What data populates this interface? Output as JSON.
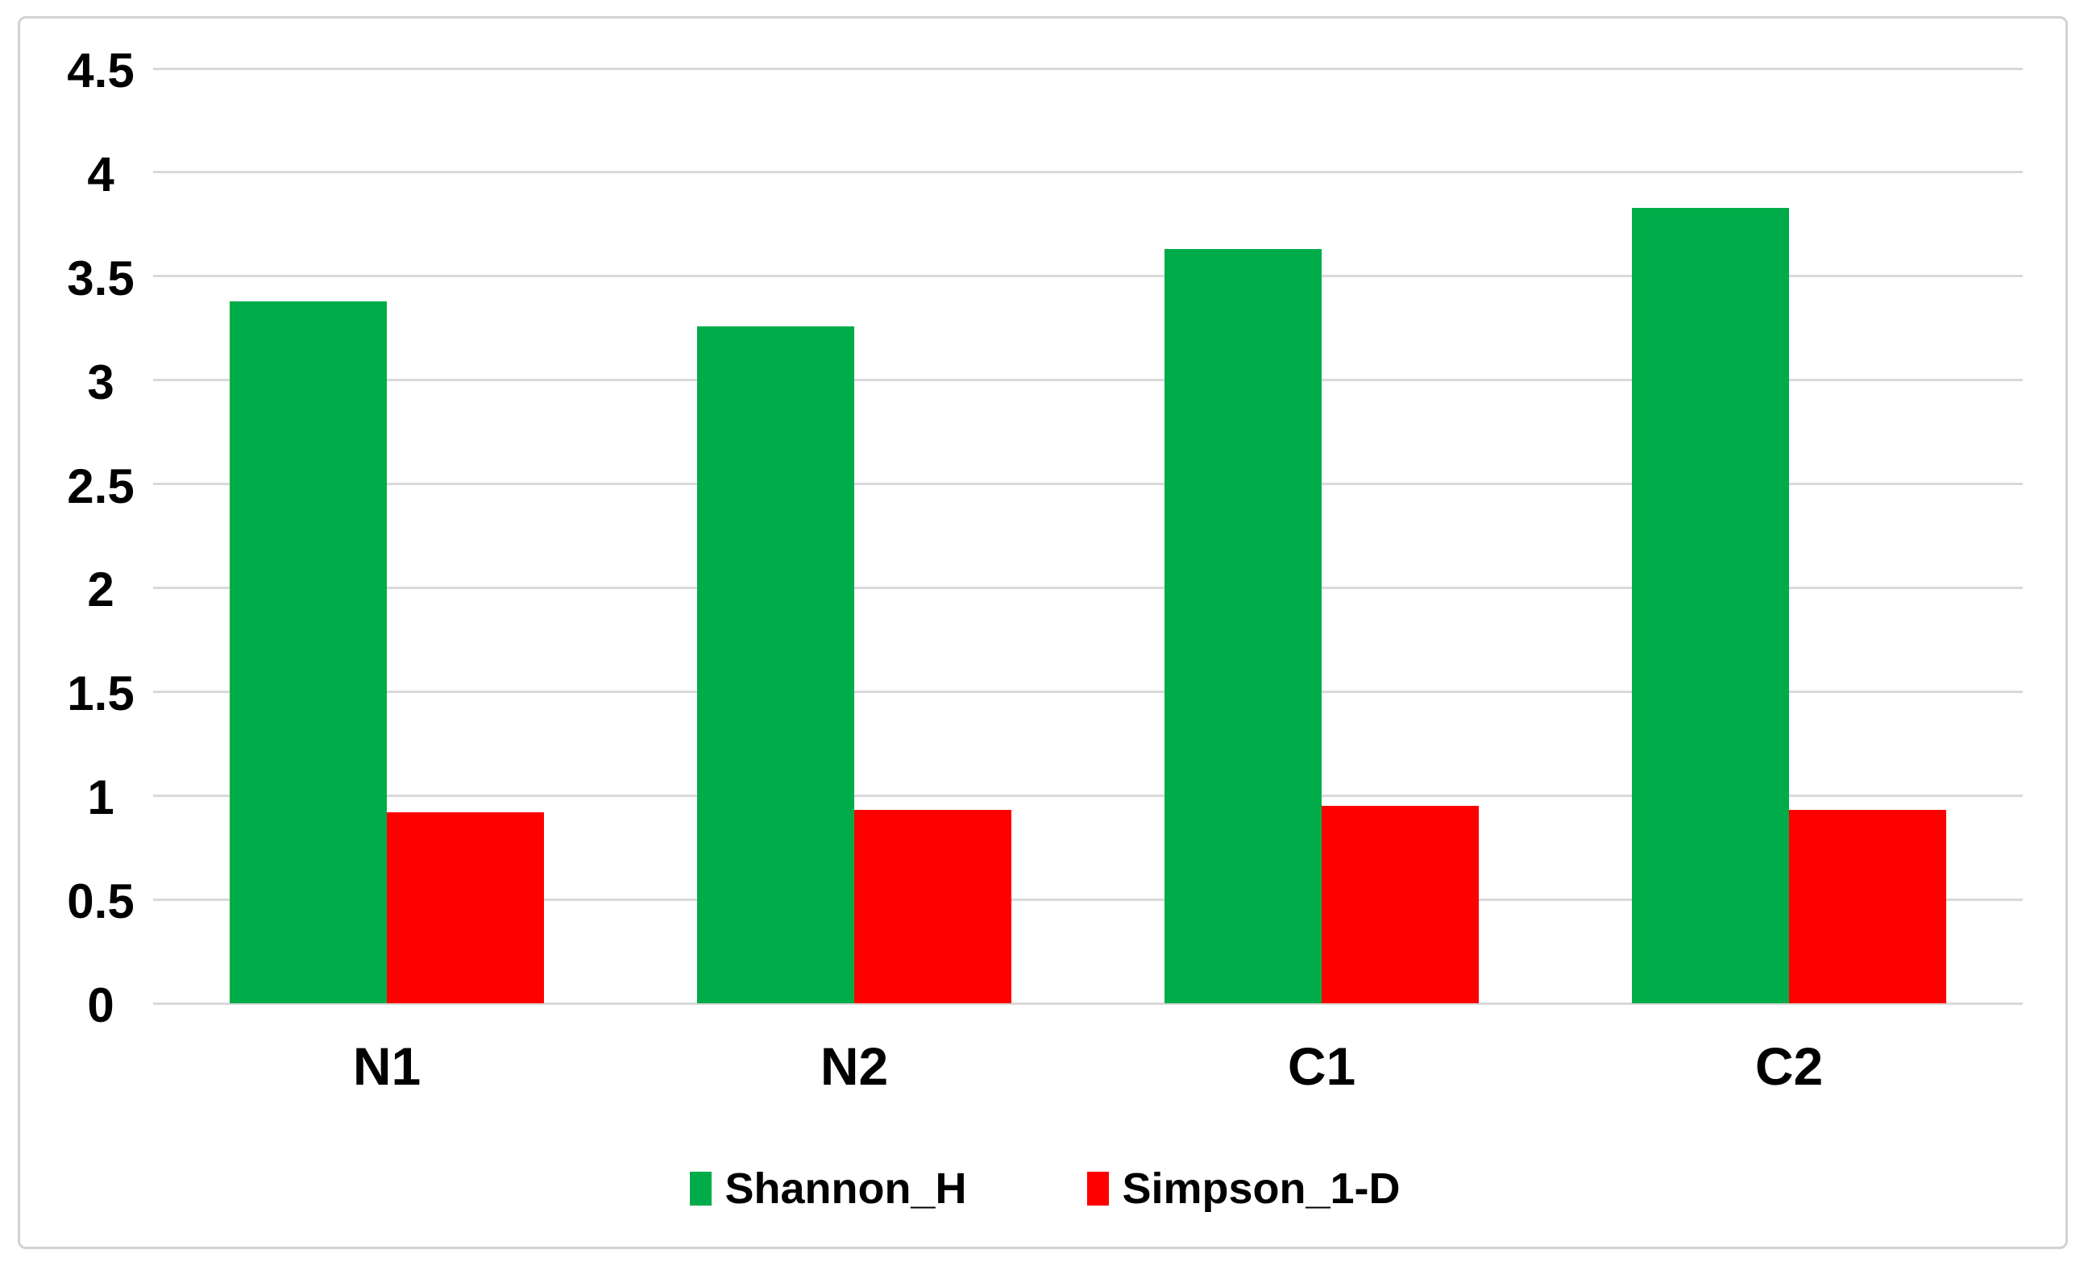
{
  "figure": {
    "background_color": "#ffffff",
    "frame_border_color": "#d2d2d2"
  },
  "chart_data": {
    "type": "bar",
    "categories": [
      "N1",
      "N2",
      "C1",
      "C2"
    ],
    "series": [
      {
        "name": "Shannon_H",
        "color": "#00ac4a",
        "values": [
          3.38,
          3.26,
          3.63,
          3.83
        ]
      },
      {
        "name": "Simpson_1-D",
        "color": "#ff0000",
        "values": [
          0.92,
          0.93,
          0.95,
          0.93
        ]
      }
    ],
    "title": "",
    "xlabel": "",
    "ylabel": "",
    "ylim": [
      0,
      4.5
    ],
    "ytick_step": 0.5,
    "ytick_labels": [
      "0",
      "0.5",
      "1",
      "1.5",
      "2",
      "2.5",
      "3",
      "3.5",
      "4",
      "4.5"
    ],
    "grid": "horizontal",
    "gridline_color": "#d9d9d9",
    "legend_position": "bottom"
  }
}
